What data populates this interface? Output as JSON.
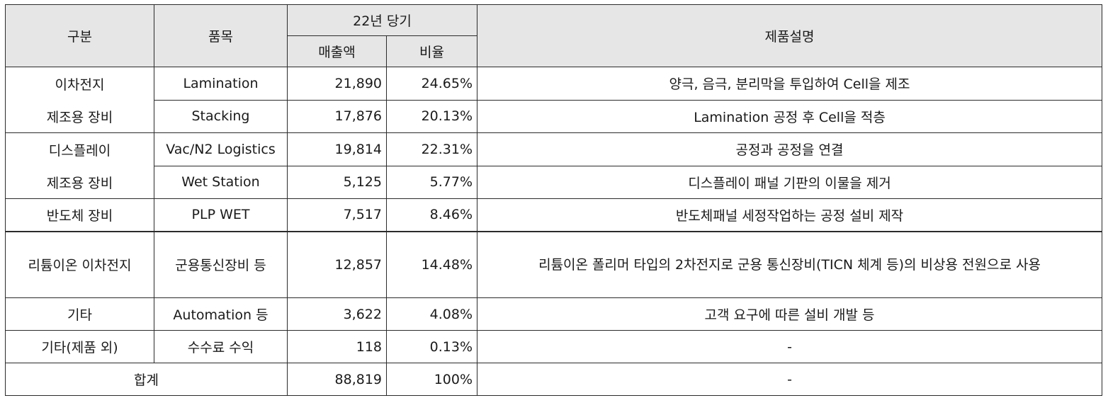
{
  "header": {
    "category": "구분",
    "item": "품목",
    "period": "22년 당기",
    "sales": "매출액",
    "ratio": "비율",
    "description": "제품설명"
  },
  "rows": [
    {
      "category_line1": "이차전지",
      "category_line2": "제조용 장비",
      "item": "Lamination",
      "sales": "21,890",
      "ratio": "24.65%",
      "description": "양극, 음극, 분리막을 투입하여 Cell을 제조"
    },
    {
      "item": "Stacking",
      "sales": "17,876",
      "ratio": "20.13%",
      "description": "Lamination 공정 후 Cell을 적층"
    },
    {
      "category_line1": "디스플레이",
      "category_line2": "제조용 장비",
      "item": "Vac/N2 Logistics",
      "sales": "19,814",
      "ratio": "22.31%",
      "description": "공정과 공정을 연결"
    },
    {
      "item": "Wet Station",
      "sales": "5,125",
      "ratio": "5.77%",
      "description": "디스플레이 패널 기판의 이물을 제거"
    },
    {
      "category": "반도체 장비",
      "item": "PLP WET",
      "sales": "7,517",
      "ratio": "8.46%",
      "description": "반도체패널 세정작업하는 공정 설비 제작"
    },
    {
      "category": "리튬이온 이차전지",
      "item": "군용통신장비 등",
      "sales": "12,857",
      "ratio": "14.48%",
      "description": "리튬이온 폴리머 타입의 2차전지로 군용 통신장비(TICN 체계 등)의 비상용 전원으로 사용"
    },
    {
      "category": "기타",
      "item": "Automation 등",
      "sales": "3,622",
      "ratio": "4.08%",
      "description": "고객 요구에 따른 설비 개발 등"
    },
    {
      "category": "기타(제품 외)",
      "item": "수수료 수익",
      "sales": "118",
      "ratio": "0.13%",
      "description": "-"
    }
  ],
  "total": {
    "label": "합계",
    "sales": "88,819",
    "ratio": "100%",
    "description": "-"
  }
}
